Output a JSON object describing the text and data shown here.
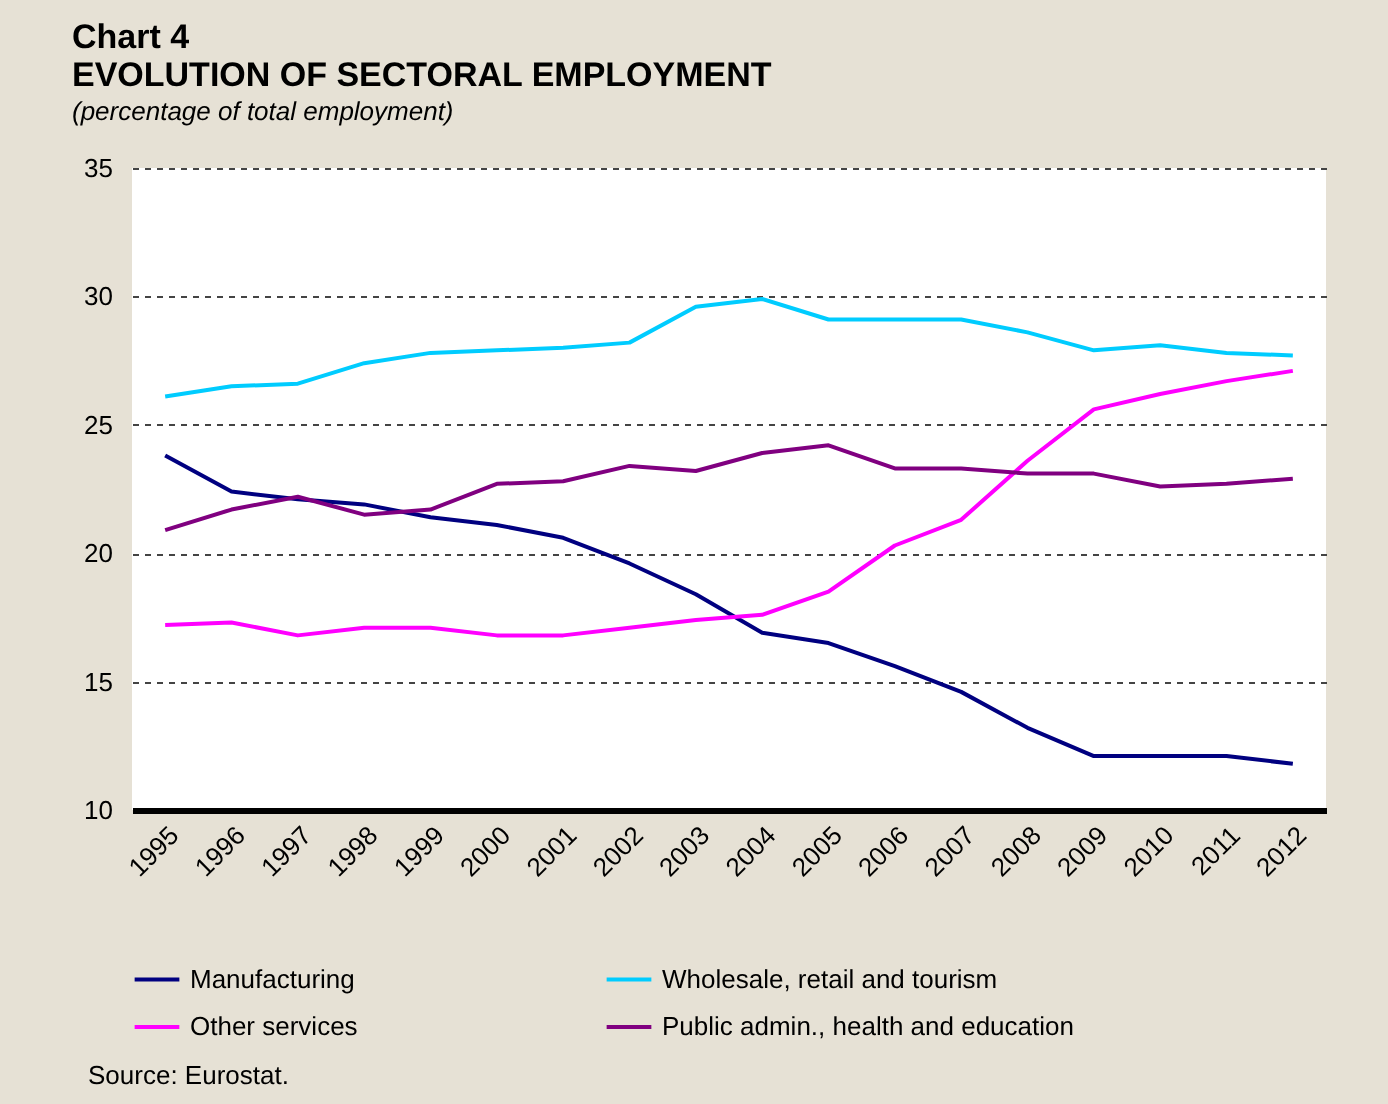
{
  "chart_data": {
    "type": "line",
    "title": "Chart 4",
    "subtitle": "EVOLUTION OF SECTORAL EMPLOYMENT",
    "ylabel": "(percentage of total employment)",
    "categories": [
      "1995",
      "1996",
      "1997",
      "1998",
      "1999",
      "2000",
      "2001",
      "2002",
      "2003",
      "2004",
      "2005",
      "2006",
      "2007",
      "2008",
      "2009",
      "2010",
      "2011",
      "2012"
    ],
    "series": [
      {
        "name": "Manufacturing",
        "color": "#000080",
        "values": [
          23.8,
          22.4,
          22.1,
          21.9,
          21.4,
          21.1,
          20.6,
          19.6,
          18.4,
          16.9,
          16.5,
          15.6,
          14.6,
          13.2,
          12.1,
          12.1,
          12.1,
          11.8
        ]
      },
      {
        "name": "Wholesale, retail and tourism",
        "color": "#00ccff",
        "values": [
          26.1,
          26.5,
          26.6,
          27.4,
          27.8,
          27.9,
          28.0,
          28.2,
          29.6,
          29.9,
          29.1,
          29.1,
          29.1,
          28.6,
          27.9,
          28.1,
          27.8,
          27.7
        ]
      },
      {
        "name": "Other services",
        "color": "#ff00ff",
        "values": [
          17.2,
          17.3,
          16.8,
          17.1,
          17.1,
          16.8,
          16.8,
          17.1,
          17.4,
          17.6,
          18.5,
          20.3,
          21.3,
          23.6,
          25.6,
          26.2,
          26.7,
          27.1
        ]
      },
      {
        "name": "Public admin., health and education",
        "color": "#800080",
        "values": [
          20.9,
          21.7,
          22.2,
          21.5,
          21.7,
          22.7,
          22.8,
          23.4,
          23.2,
          23.9,
          24.2,
          23.3,
          23.3,
          23.1,
          23.1,
          22.6,
          22.7,
          22.9
        ]
      }
    ],
    "ylim": [
      10,
      35
    ],
    "yticks": [
      10,
      15,
      20,
      25,
      30,
      35
    ],
    "grid": "y",
    "legend": "bottom",
    "line_style": "solid",
    "marker": "none",
    "annotations": [
      "Source: Eurostat."
    ]
  }
}
